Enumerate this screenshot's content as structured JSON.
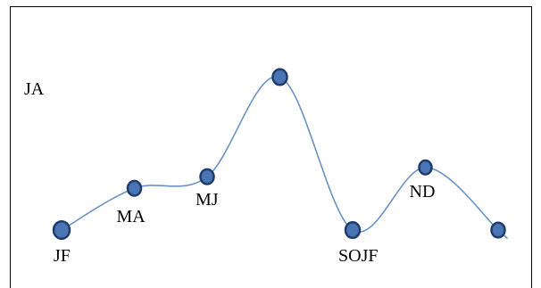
{
  "chart_data": {
    "type": "line",
    "title": "",
    "xlabel": "",
    "ylabel": "",
    "grid": false,
    "legend": "none",
    "line_color": "#6a93c4",
    "marker_fill": "#4a74b4",
    "marker_edge": "#1f3d6c",
    "frame_color": "#000000",
    "series": [
      {
        "points": [
          {
            "label": "JF",
            "x": 1,
            "y": 1.2
          },
          {
            "label": "MA",
            "x": 2,
            "y": 3.0
          },
          {
            "label": "MJ",
            "x": 3,
            "y": 3.5
          },
          {
            "label": "",
            "x": 4,
            "y": 7.8
          },
          {
            "label": "SOJF",
            "x": 5,
            "y": 1.2
          },
          {
            "label": "ND",
            "x": 6,
            "y": 3.9
          },
          {
            "label": "",
            "x": 7,
            "y": 1.2
          }
        ]
      }
    ],
    "annotations": [
      {
        "text": "JA"
      }
    ]
  }
}
